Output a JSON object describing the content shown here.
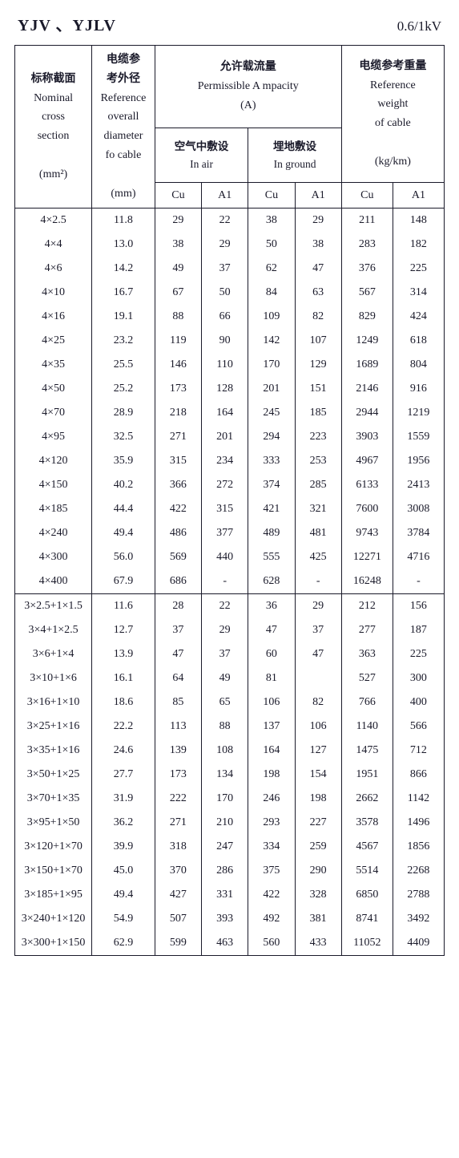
{
  "header": {
    "title_left": "YJV 、YJLV",
    "title_right": "0.6/1kV"
  },
  "table": {
    "headers": {
      "col1_cn": "标称截面",
      "col1_en1": "Nominal",
      "col1_en2": "cross",
      "col1_en3": "section",
      "col1_unit": "(mm²)",
      "col2_cn1": "电缆参",
      "col2_cn2": "考外径",
      "col2_en1": "Reference",
      "col2_en2": "overall",
      "col2_en3": "diameter",
      "col2_en4": "fo cable",
      "col2_unit": "(mm)",
      "col3_cn": "允许载流量",
      "col3_en1": "Permissible A mpacity",
      "col3_en2": "(A)",
      "col3a_cn": "空气中敷设",
      "col3a_en": "In air",
      "col3b_cn": "埋地敷设",
      "col3b_en": "In ground",
      "col4_cn": "电缆参考重量",
      "col4_en1": "Reference",
      "col4_en2": "weight",
      "col4_en3": "of cable",
      "col4_unit": "(kg/km)",
      "cu": "Cu",
      "al": "A1"
    },
    "section1": [
      {
        "s": "4×2.5",
        "d": "11.8",
        "ac": "29",
        "aa": "22",
        "gc": "38",
        "ga": "29",
        "wc": "211",
        "wa": "148"
      },
      {
        "s": "4×4",
        "d": "13.0",
        "ac": "38",
        "aa": "29",
        "gc": "50",
        "ga": "38",
        "wc": "283",
        "wa": "182"
      },
      {
        "s": "4×6",
        "d": "14.2",
        "ac": "49",
        "aa": "37",
        "gc": "62",
        "ga": "47",
        "wc": "376",
        "wa": "225"
      },
      {
        "s": "4×10",
        "d": "16.7",
        "ac": "67",
        "aa": "50",
        "gc": "84",
        "ga": "63",
        "wc": "567",
        "wa": "314"
      },
      {
        "s": "4×16",
        "d": "19.1",
        "ac": "88",
        "aa": "66",
        "gc": "109",
        "ga": "82",
        "wc": "829",
        "wa": "424"
      },
      {
        "s": "4×25",
        "d": "23.2",
        "ac": "119",
        "aa": "90",
        "gc": "142",
        "ga": "107",
        "wc": "1249",
        "wa": "618"
      },
      {
        "s": "4×35",
        "d": "25.5",
        "ac": "146",
        "aa": "110",
        "gc": "170",
        "ga": "129",
        "wc": "1689",
        "wa": "804"
      },
      {
        "s": "4×50",
        "d": "25.2",
        "ac": "173",
        "aa": "128",
        "gc": "201",
        "ga": "151",
        "wc": "2146",
        "wa": "916"
      },
      {
        "s": "4×70",
        "d": "28.9",
        "ac": "218",
        "aa": "164",
        "gc": "245",
        "ga": "185",
        "wc": "2944",
        "wa": "1219"
      },
      {
        "s": "4×95",
        "d": "32.5",
        "ac": "271",
        "aa": "201",
        "gc": "294",
        "ga": "223",
        "wc": "3903",
        "wa": "1559"
      },
      {
        "s": "4×120",
        "d": "35.9",
        "ac": "315",
        "aa": "234",
        "gc": "333",
        "ga": "253",
        "wc": "4967",
        "wa": "1956"
      },
      {
        "s": "4×150",
        "d": "40.2",
        "ac": "366",
        "aa": "272",
        "gc": "374",
        "ga": "285",
        "wc": "6133",
        "wa": "2413"
      },
      {
        "s": "4×185",
        "d": "44.4",
        "ac": "422",
        "aa": "315",
        "gc": "421",
        "ga": "321",
        "wc": "7600",
        "wa": "3008"
      },
      {
        "s": "4×240",
        "d": "49.4",
        "ac": "486",
        "aa": "377",
        "gc": "489",
        "ga": "481",
        "wc": "9743",
        "wa": "3784"
      },
      {
        "s": "4×300",
        "d": "56.0",
        "ac": "569",
        "aa": "440",
        "gc": "555",
        "ga": "425",
        "wc": "12271",
        "wa": "4716"
      },
      {
        "s": "4×400",
        "d": "67.9",
        "ac": "686",
        "aa": "-",
        "gc": "628",
        "ga": "-",
        "wc": "16248",
        "wa": "-"
      }
    ],
    "section2": [
      {
        "s": "3×2.5+1×1.5",
        "d": "11.6",
        "ac": "28",
        "aa": "22",
        "gc": "36",
        "ga": "29",
        "wc": "212",
        "wa": "156"
      },
      {
        "s": "3×4+1×2.5",
        "d": "12.7",
        "ac": "37",
        "aa": "29",
        "gc": "47",
        "ga": "37",
        "wc": "277",
        "wa": "187"
      },
      {
        "s": "3×6+1×4",
        "d": "13.9",
        "ac": "47",
        "aa": "37",
        "gc": "60",
        "ga": "47",
        "wc": "363",
        "wa": "225"
      },
      {
        "s": "3×10+1×6",
        "d": "16.1",
        "ac": "64",
        "aa": "49",
        "gc": "81",
        "ga": "",
        "wc": "527",
        "wa": "300"
      },
      {
        "s": "3×16+1×10",
        "d": "18.6",
        "ac": "85",
        "aa": "65",
        "gc": "106",
        "ga": "82",
        "wc": "766",
        "wa": "400"
      },
      {
        "s": "3×25+1×16",
        "d": "22.2",
        "ac": "113",
        "aa": "88",
        "gc": "137",
        "ga": "106",
        "wc": "1140",
        "wa": "566"
      },
      {
        "s": "3×35+1×16",
        "d": "24.6",
        "ac": "139",
        "aa": "108",
        "gc": "164",
        "ga": "127",
        "wc": "1475",
        "wa": "712"
      },
      {
        "s": "3×50+1×25",
        "d": "27.7",
        "ac": "173",
        "aa": "134",
        "gc": "198",
        "ga": "154",
        "wc": "1951",
        "wa": "866"
      },
      {
        "s": "3×70+1×35",
        "d": "31.9",
        "ac": "222",
        "aa": "170",
        "gc": "246",
        "ga": "198",
        "wc": "2662",
        "wa": "1142"
      },
      {
        "s": "3×95+1×50",
        "d": "36.2",
        "ac": "271",
        "aa": "210",
        "gc": "293",
        "ga": "227",
        "wc": "3578",
        "wa": "1496"
      },
      {
        "s": "3×120+1×70",
        "d": "39.9",
        "ac": "318",
        "aa": "247",
        "gc": "334",
        "ga": "259",
        "wc": "4567",
        "wa": "1856"
      },
      {
        "s": "3×150+1×70",
        "d": "45.0",
        "ac": "370",
        "aa": "286",
        "gc": "375",
        "ga": "290",
        "wc": "5514",
        "wa": "2268"
      },
      {
        "s": "3×185+1×95",
        "d": "49.4",
        "ac": "427",
        "aa": "331",
        "gc": "422",
        "ga": "328",
        "wc": "6850",
        "wa": "2788"
      },
      {
        "s": "3×240+1×120",
        "d": "54.9",
        "ac": "507",
        "aa": "393",
        "gc": "492",
        "ga": "381",
        "wc": "8741",
        "wa": "3492"
      },
      {
        "s": "3×300+1×150",
        "d": "62.9",
        "ac": "599",
        "aa": "463",
        "gc": "560",
        "ga": "433",
        "wc": "11052",
        "wa": "4409"
      }
    ]
  }
}
